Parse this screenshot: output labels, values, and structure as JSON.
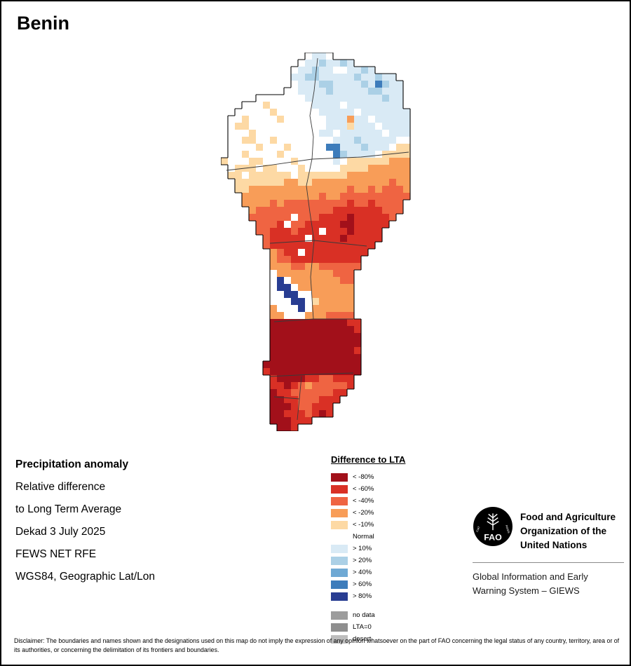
{
  "title": "Benin",
  "info": {
    "heading": "Precipitation anomaly",
    "lines": [
      "Relative difference",
      "to Long Term Average",
      "Dekad 3 July 2025",
      "FEWS NET RFE",
      "WGS84, Geographic Lat/Lon"
    ]
  },
  "legend": {
    "title": "Difference to LTA",
    "items": [
      {
        "label": "< -80%",
        "color": "#a2101a"
      },
      {
        "label": "< -60%",
        "color": "#d93025"
      },
      {
        "label": "< -40%",
        "color": "#ef6442"
      },
      {
        "label": "< -20%",
        "color": "#f89d58"
      },
      {
        "label": "< -10%",
        "color": "#fdd9a4"
      },
      {
        "label": "Normal",
        "color": "#ffffff"
      },
      {
        "label": "> 10%",
        "color": "#d9eaf5"
      },
      {
        "label": "> 20%",
        "color": "#abd0e6"
      },
      {
        "label": "> 40%",
        "color": "#6fa9d4"
      },
      {
        "label": "> 60%",
        "color": "#3d7cbb"
      },
      {
        "label": "> 80%",
        "color": "#283d92"
      }
    ],
    "special_items": [
      {
        "label": "no data",
        "color": "#9c9c9c"
      },
      {
        "label": "LTA=0",
        "color": "#8f8f8f"
      },
      {
        "label": "desert",
        "color": "#bdbdbd"
      }
    ]
  },
  "fao": {
    "acronym": "FAO",
    "motto_left": "FIAT",
    "motto_right": "PANIS",
    "org_lines": [
      "Food and Agriculture",
      "Organization of the",
      "United Nations"
    ],
    "giews_lines": [
      "Global Information and Early",
      "Warning System – GIEWS"
    ]
  },
  "disclaimer": "Disclaimer: The boundaries and names shown and the designations used on this map do not imply the expression of any opinion whatsoever on the part of FAO concerning the legal status of any country, territory, area or of its authorities, or concerning the delimitation of its frontiers and boundaries.",
  "map": {
    "cell_size": 10,
    "palette": {
      "0": "#ffffff",
      "1": "#fdd9a4",
      "2": "#f89d58",
      "3": "#ef6442",
      "4": "#d93025",
      "5": "#a2101a",
      "a": "#d9eaf5",
      "b": "#abd0e6",
      "c": "#6fa9d4",
      "d": "#3d7cbb",
      "e": "#283d92"
    },
    "grid": [
      "............0aa0............",
      "...........0aabaaba.........",
      "..........0aabaa00aaba......",
      "..........aabbaaaaabaabaa...",
      "..........0aaabbaaaabadbaa..",
      ".........00aaaabaaaaabbaaa..",
      ".....0000000aaaaaaaaaaabaa..",
      "...0001000000aaaa0aaaaaaaa..",
      "..000001000000aaaaa0aaaaaaa.",
      ".00100001000000aaa2aa0aaaaa.",
      ".01100000000000aaa1aaa0aaaa.",
      ".0001000000000aa0aaaaaa0aaa.",
      ".001100100000000aaabaaaaa00.",
      ".00001000100000ddaaabaaa011.",
      ".001000010000000dbaaaa01111.",
      "1000110000100000a0111111222.",
      ".01110110001000001111222222.",
      ".11011111101111111222222222.",
      "..1111111221122222222222322.",
      "..1122222222222222322323332.",
      "...222222222223223333333333.",
      "...22223233333333343343333..",
      "....2333333333334444444333..",
      "....333333033344445444443...",
      ".....3334033444445544444....",
      ".....334443444044454444.....",
      "......34444404444544444.....",
      "......3444444444444444......",
      ".......23440444444444.......",
      ".......2334444444444........",
      ".......2223322333333........",
      ".......022222222333.........",
      ".......0e0222222233.........",
      ".......0ee022222222.........",
      ".......00ee00222222.........",
      ".......000ee0122222.........",
      ".......2000e0222222.........",
      ".......220002223333.........",
      ".......5555555555544........",
      ".......5555555555554........",
      ".......5555555555555........",
      ".......5555555555555........",
      ".......5555555555554........",
      ".......5555555555555........",
      "......55555555555555........",
      "......45555555555555........",
      ".......455554433444.........",
      ".......445432333334.........",
      ".......54433333344..........",
      ".......5544333444...........",
      ".......555433444............",
      ".......554443454............",
      ".......555444...............",
      "........554................."
    ],
    "boundaries": [
      [
        [
          138,
          8
        ],
        [
          133,
          55
        ],
        [
          127,
          90
        ],
        [
          132,
          120
        ],
        [
          130,
          152
        ]
      ],
      [
        [
          8,
          168
        ],
        [
          60,
          162
        ],
        [
          130,
          152
        ],
        [
          200,
          149
        ],
        [
          268,
          142
        ]
      ],
      [
        [
          130,
          152
        ],
        [
          122,
          190
        ],
        [
          127,
          228
        ],
        [
          133,
          268
        ]
      ],
      [
        [
          70,
          272
        ],
        [
          133,
          268
        ],
        [
          208,
          276
        ]
      ],
      [
        [
          133,
          268
        ],
        [
          128,
          320
        ],
        [
          132,
          380
        ]
      ],
      [
        [
          76,
          384
        ],
        [
          132,
          380
        ],
        [
          189,
          380
        ]
      ],
      [
        [
          70,
          462
        ],
        [
          130,
          459
        ],
        [
          189,
          457
        ]
      ],
      [
        [
          115,
          462
        ],
        [
          112,
          494
        ],
        [
          109,
          524
        ]
      ],
      [
        [
          76,
          491
        ],
        [
          112,
          494
        ]
      ]
    ]
  }
}
